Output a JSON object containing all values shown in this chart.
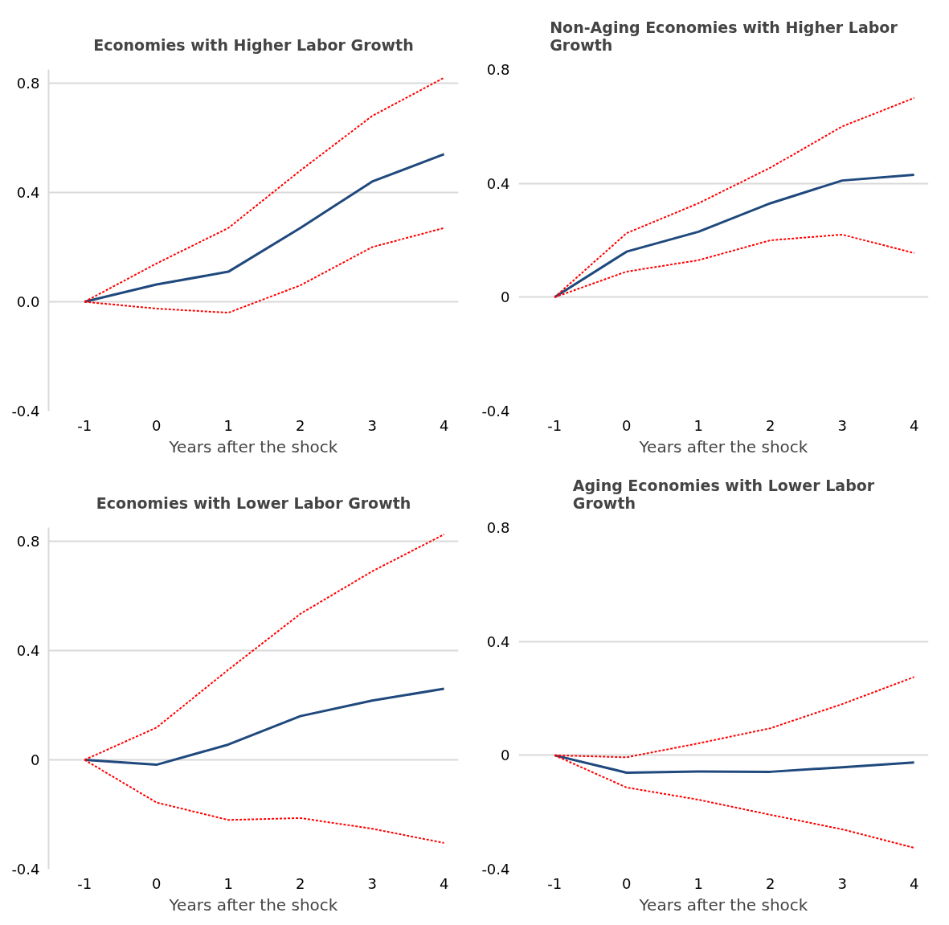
{
  "chart_data": [
    {
      "type": "line",
      "title": "Economies with Higher Labor Growth",
      "xlabel": "Years after the shock",
      "x": [
        -1,
        0,
        1,
        2,
        3,
        4
      ],
      "xlim": [
        -1.5,
        4.2
      ],
      "xticks": [
        -1,
        0,
        1,
        2,
        3,
        4
      ],
      "ylim": [
        -0.4,
        0.85
      ],
      "yticks": [
        {
          "value": -0.4,
          "label": "-0.4"
        },
        {
          "value": 0,
          "label": "0.0"
        },
        {
          "value": 0.4,
          "label": "0.4"
        },
        {
          "value": 0.8,
          "label": "0.8"
        }
      ],
      "grid": "y",
      "series": [
        {
          "color": "#1f497d",
          "line_style": "solid",
          "values": [
            0,
            0.063,
            0.11,
            0.27,
            0.44,
            0.54
          ]
        },
        {
          "color": "#ff0000",
          "line_style": "dashed",
          "values": [
            0,
            0.14,
            0.27,
            0.48,
            0.68,
            0.82
          ]
        },
        {
          "color": "#ff0000",
          "line_style": "dashed",
          "values": [
            0,
            -0.025,
            -0.04,
            0.06,
            0.2,
            0.27
          ]
        }
      ]
    },
    {
      "type": "line",
      "title": "Non-Aging Economies with Higher Labor Growth",
      "xlabel": "Years after the shock",
      "x": [
        -1,
        0,
        1,
        2,
        3,
        4
      ],
      "xlim": [
        -1.5,
        4.2
      ],
      "xticks": [
        -1,
        0,
        1,
        2,
        3,
        4
      ],
      "ylim": [
        -0.4,
        0.8
      ],
      "yticks": [
        -0.4,
        0,
        0.4,
        0.8
      ],
      "grid": "y",
      "series": [
        {
          "color": "#1f497d",
          "line_style": "solid",
          "values": [
            0,
            0.16,
            0.23,
            0.33,
            0.41,
            0.43
          ]
        },
        {
          "color": "#ff0000",
          "line_style": "dashed",
          "values": [
            0,
            0.225,
            0.33,
            0.455,
            0.6,
            0.7
          ]
        },
        {
          "color": "#ff0000",
          "line_style": "dashed",
          "values": [
            0,
            0.09,
            0.13,
            0.2,
            0.22,
            0.155
          ]
        }
      ]
    },
    {
      "type": "line",
      "title": "Economies with Lower Labor Growth",
      "xlabel": "Years after the shock",
      "x": [
        -1,
        0,
        1,
        2,
        3,
        4
      ],
      "xlim": [
        -1.5,
        4.2
      ],
      "xticks": [
        -1,
        0,
        1,
        2,
        3,
        4
      ],
      "ylim": [
        -0.4,
        0.85
      ],
      "yticks": [
        -0.4,
        0,
        0.4,
        0.8
      ],
      "grid": "y",
      "series": [
        {
          "color": "#1f497d",
          "line_style": "solid",
          "values": [
            0,
            -0.018,
            0.056,
            0.16,
            0.217,
            0.26
          ]
        },
        {
          "color": "#ff0000",
          "line_style": "dashed",
          "values": [
            0,
            0.118,
            0.33,
            0.534,
            0.69,
            0.825
          ]
        },
        {
          "color": "#ff0000",
          "line_style": "dashed",
          "values": [
            0,
            -0.156,
            -0.22,
            -0.213,
            -0.252,
            -0.304
          ]
        }
      ]
    },
    {
      "type": "line",
      "title": "Aging Economies with Lower Labor Growth",
      "xlabel": "Years after the shock",
      "x": [
        -1,
        0,
        1,
        2,
        3,
        4
      ],
      "xlim": [
        -1.5,
        4.2
      ],
      "xticks": [
        -1,
        0,
        1,
        2,
        3,
        4
      ],
      "ylim": [
        -0.4,
        0.8
      ],
      "yticks": [
        -0.4,
        0,
        0.4,
        0.8
      ],
      "grid": "y",
      "series": [
        {
          "color": "#1f497d",
          "line_style": "solid",
          "values": [
            0,
            -0.061,
            -0.057,
            -0.058,
            -0.042,
            -0.025
          ]
        },
        {
          "color": "#ff0000",
          "line_style": "dashed",
          "values": [
            0,
            -0.007,
            0.042,
            0.095,
            0.18,
            0.275
          ]
        },
        {
          "color": "#ff0000",
          "line_style": "dashed",
          "values": [
            0,
            -0.113,
            -0.156,
            -0.209,
            -0.26,
            -0.325
          ]
        }
      ]
    }
  ]
}
